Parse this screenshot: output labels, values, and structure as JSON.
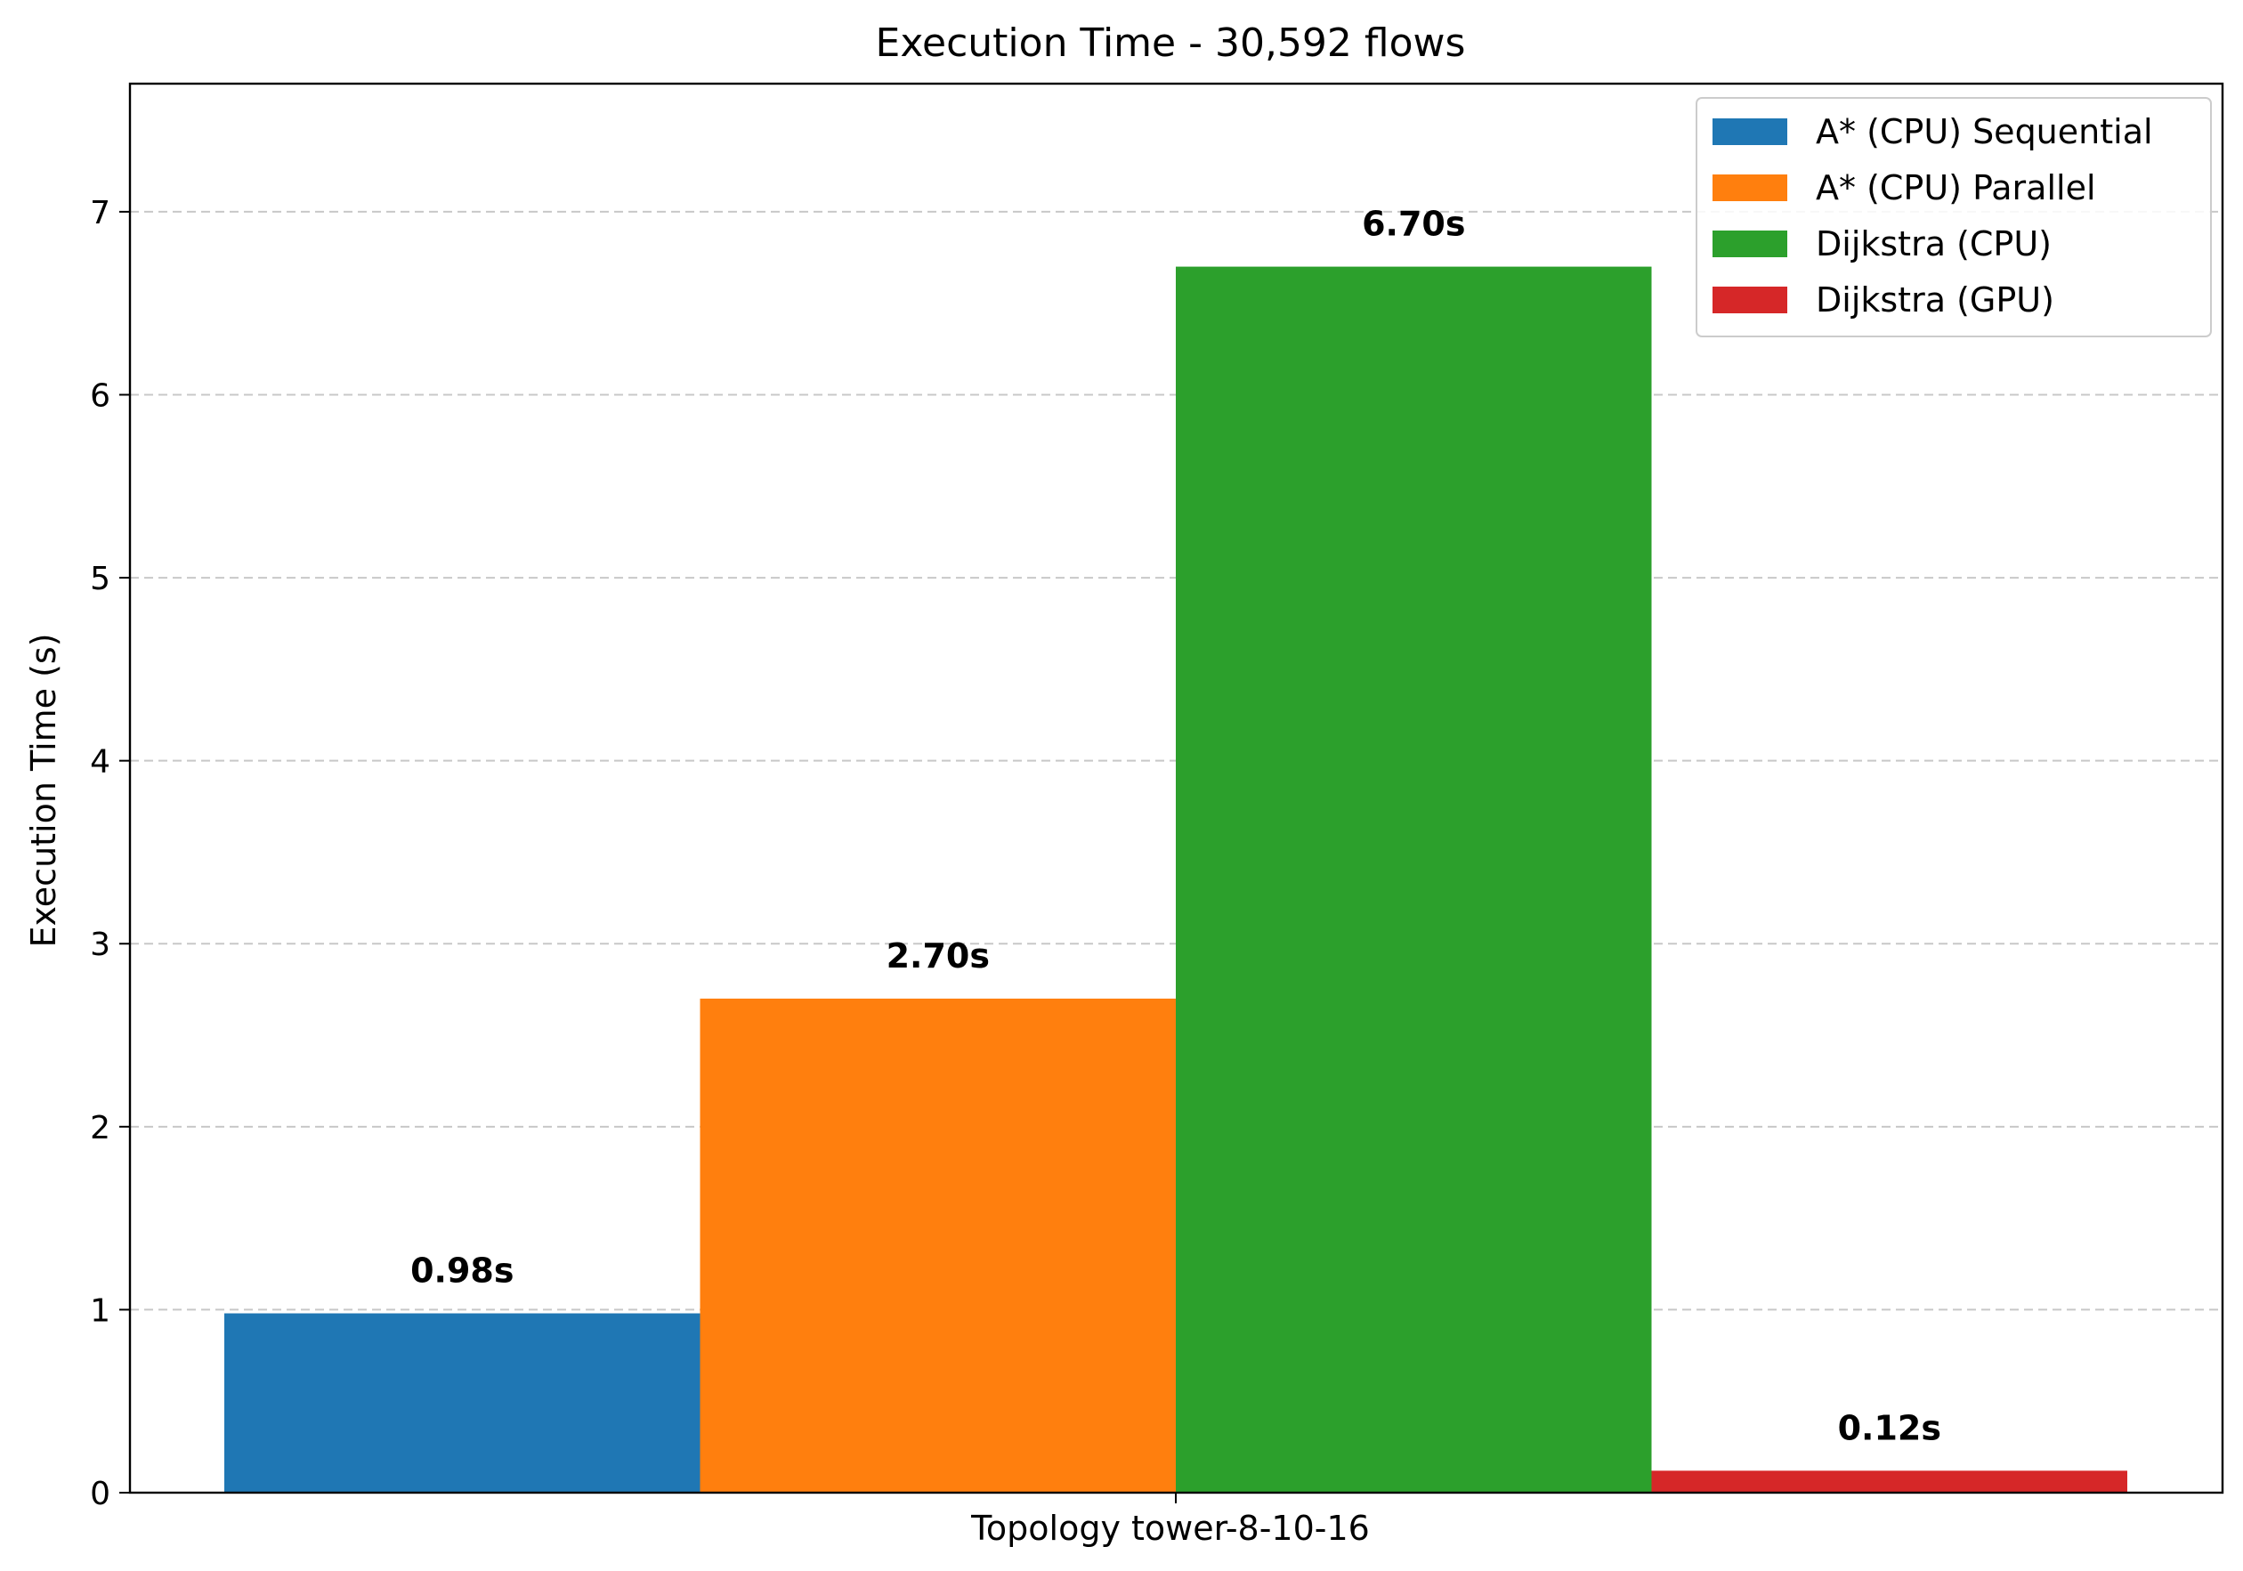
{
  "chart_data": {
    "type": "bar",
    "title": "Execution Time - 30,592 flows",
    "xlabel": "Topology tower-8-10-16",
    "ylabel": "Execution Time (s)",
    "categories": [
      "Topology tower-8-10-16"
    ],
    "ylim": [
      0,
      7.7
    ],
    "yticks": [
      0,
      1,
      2,
      3,
      4,
      5,
      6,
      7
    ],
    "grid": "y-dashed",
    "legend_position": "top-right",
    "series": [
      {
        "name": "A* (CPU) Sequential",
        "color": "#1f77b4",
        "values": [
          0.98
        ],
        "label": "0.98s"
      },
      {
        "name": "A* (CPU) Parallel",
        "color": "#ff7f0e",
        "values": [
          2.7
        ],
        "label": "2.70s"
      },
      {
        "name": "Dijkstra (CPU)",
        "color": "#2ca02c",
        "values": [
          6.7
        ],
        "label": "6.70s"
      },
      {
        "name": "Dijkstra (GPU)",
        "color": "#d62728",
        "values": [
          0.12
        ],
        "label": "0.12s"
      }
    ]
  }
}
